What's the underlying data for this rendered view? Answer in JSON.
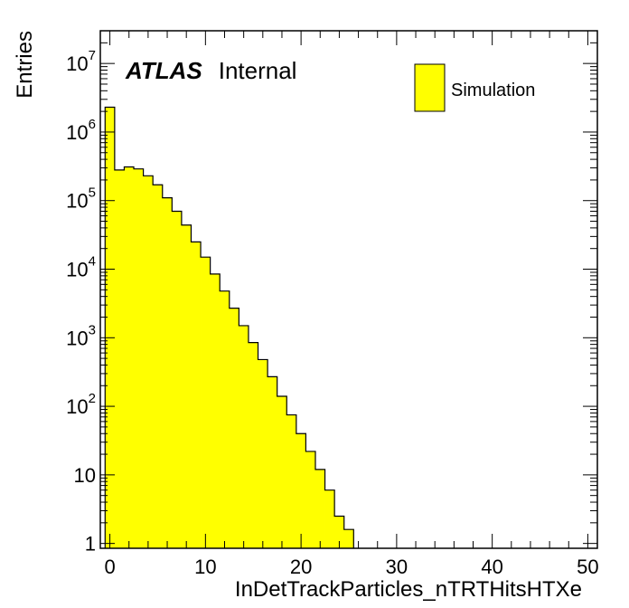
{
  "chart_data": {
    "type": "bar",
    "xlabel": "InDetTrackParticles_nTRTHitsHTXe",
    "ylabel": "Entries",
    "label_bold": "ATLAS",
    "label_normal": "Internal",
    "legend": {
      "position": "top-right",
      "entries": [
        "Simulation"
      ]
    },
    "series": [
      {
        "name": "Simulation",
        "color": "#ffff00",
        "bin_edges_start": -0.5,
        "bin_width": 1,
        "values": [
          2300000,
          280000,
          310000,
          290000,
          230000,
          170000,
          110000,
          70000,
          44000,
          25000,
          15000,
          8500,
          4800,
          2700,
          1500,
          850,
          480,
          270,
          140,
          75,
          40,
          22,
          12,
          6,
          2.5,
          1.6
        ]
      }
    ],
    "xlim": [
      -1,
      51
    ],
    "ylim": [
      0.85,
      30000000
    ],
    "yscale": "log",
    "xticks": [
      0,
      10,
      20,
      30,
      40,
      50
    ],
    "xtick_labels": [
      "0",
      "10",
      "20",
      "30",
      "40",
      "50"
    ],
    "yticks": [
      1,
      10,
      100,
      1000,
      10000,
      100000,
      1000000,
      10000000
    ],
    "ytick_base": [
      "1",
      "10",
      "10",
      "10",
      "10",
      "10",
      "10",
      "10"
    ],
    "ytick_exp": [
      "",
      "",
      "2",
      "3",
      "4",
      "5",
      "6",
      "7"
    ]
  }
}
